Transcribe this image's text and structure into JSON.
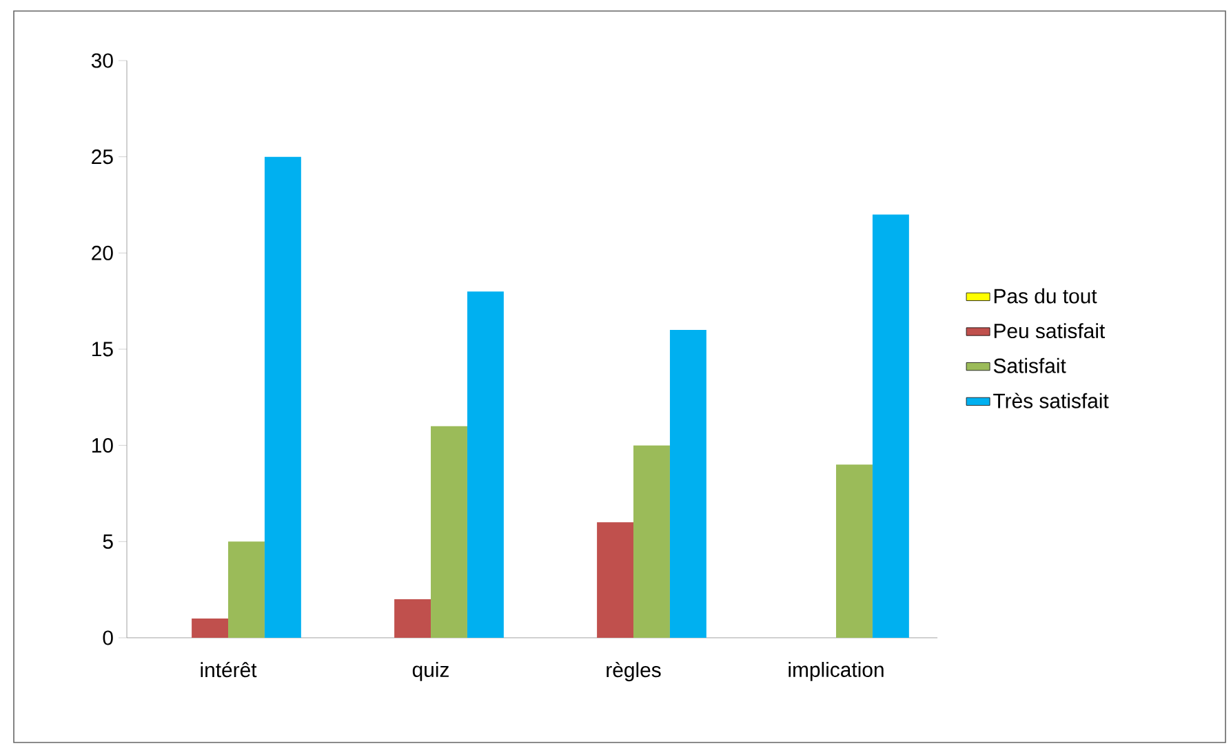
{
  "chart_data": {
    "type": "bar",
    "categories": [
      "intérêt",
      "quiz",
      "règles",
      "implication"
    ],
    "series": [
      {
        "name": "Pas du tout",
        "color": "#ffff00",
        "values": [
          0,
          0,
          0,
          0
        ]
      },
      {
        "name": "Peu satisfait",
        "color": "#c0504d",
        "values": [
          1,
          2,
          6,
          0
        ]
      },
      {
        "name": "Satisfait",
        "color": "#9bbb59",
        "values": [
          5,
          11,
          10,
          9
        ]
      },
      {
        "name": "Très satisfait",
        "color": "#00b0f0",
        "values": [
          25,
          18,
          16,
          22
        ]
      }
    ],
    "ylim": [
      0,
      30
    ],
    "yticks": [
      0,
      5,
      10,
      15,
      20,
      25,
      30
    ],
    "grid": false,
    "legend": "right"
  }
}
